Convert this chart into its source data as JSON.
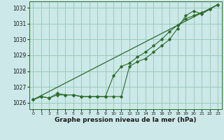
{
  "xlabel": "Graphe pression niveau de la mer (hPa)",
  "background_color": "#cce8e8",
  "grid_color": "#99ccbb",
  "line_color": "#2d6a2d",
  "ylim": [
    1025.6,
    1032.4
  ],
  "xlim": [
    -0.5,
    23.5
  ],
  "yticks": [
    1026,
    1027,
    1028,
    1029,
    1030,
    1031,
    1032
  ],
  "xticks": [
    0,
    1,
    2,
    3,
    4,
    5,
    6,
    7,
    8,
    9,
    10,
    11,
    12,
    13,
    14,
    15,
    16,
    17,
    18,
    19,
    20,
    21,
    22,
    23
  ],
  "series1_x": [
    0,
    1,
    2,
    3,
    4,
    5,
    6,
    7,
    8,
    9,
    10,
    11,
    12,
    13,
    14,
    15,
    16,
    17,
    18,
    19,
    20,
    21,
    22,
    23
  ],
  "series1_y": [
    1026.2,
    1026.4,
    1026.3,
    1026.5,
    1026.5,
    1026.5,
    1026.4,
    1026.4,
    1026.4,
    1026.4,
    1026.4,
    1026.4,
    1028.3,
    1028.6,
    1028.8,
    1029.2,
    1029.6,
    1030.0,
    1030.7,
    1031.5,
    1031.8,
    1031.6,
    1031.9,
    1032.2
  ],
  "series2_x": [
    0,
    1,
    2,
    3,
    4,
    5,
    6,
    7,
    8,
    9,
    10,
    11,
    12,
    13,
    14,
    15,
    16,
    17,
    18,
    19,
    20,
    21,
    22,
    23
  ],
  "series2_y": [
    1026.2,
    1026.4,
    1026.3,
    1026.6,
    1026.5,
    1026.5,
    1026.4,
    1026.4,
    1026.4,
    1026.4,
    1027.7,
    1028.3,
    1028.5,
    1028.9,
    1029.2,
    1029.6,
    1030.0,
    1030.5,
    1030.9,
    1031.3,
    1031.5,
    1031.7,
    1031.9,
    1032.2
  ],
  "series3_x": [
    0,
    23
  ],
  "series3_y": [
    1026.2,
    1032.2
  ]
}
